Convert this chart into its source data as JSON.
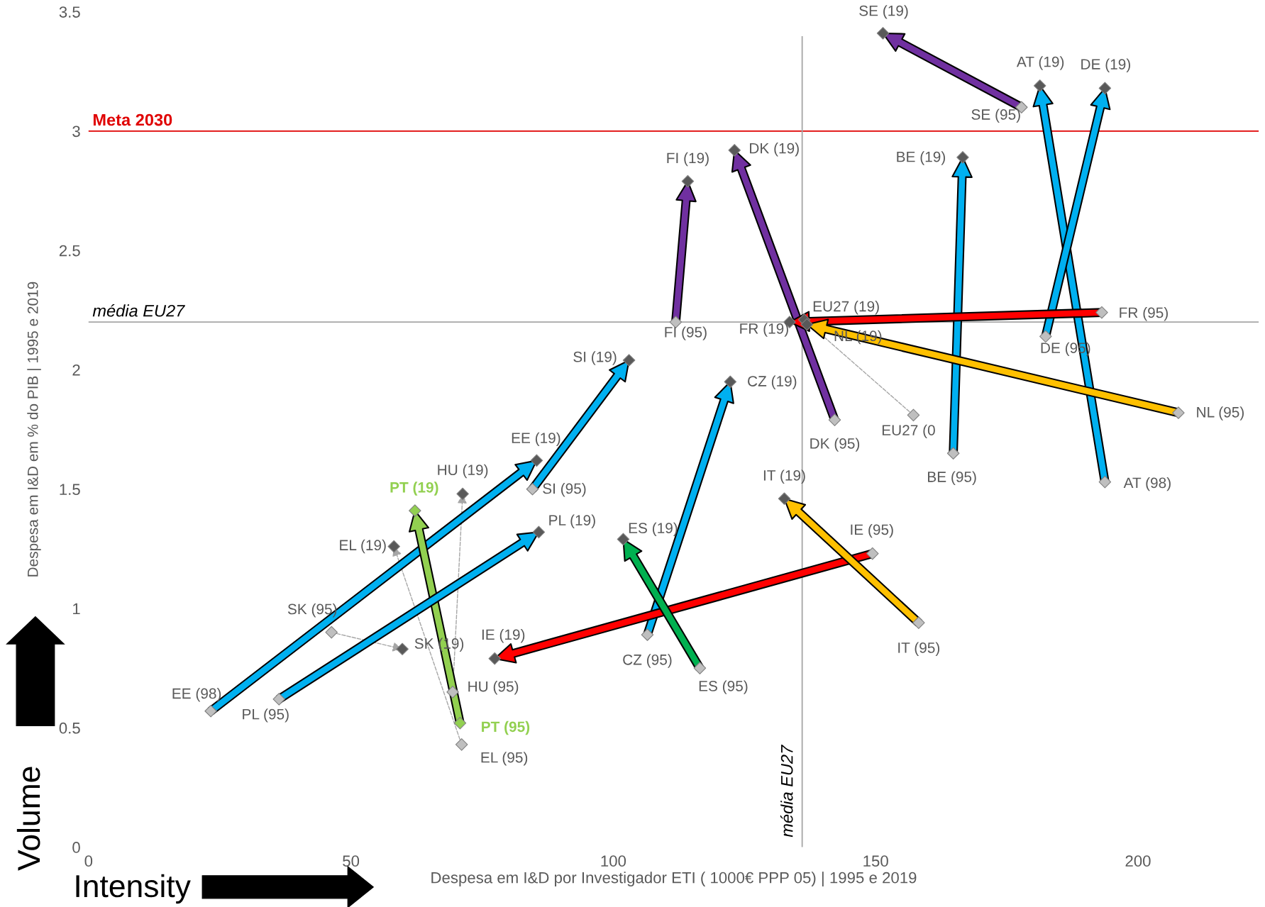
{
  "chart_data": {
    "type": "scatter",
    "xlabel": "Despesa em I&D por Investigador ETI ( 1000€ PPP 05) | 1995 e 2019",
    "ylabel": "Despesa em I&D em % do PIB | 1995 e 2019",
    "xlim": [
      0,
      223
    ],
    "ylim": [
      0,
      3.5
    ],
    "xticks": [
      0,
      50,
      100,
      150,
      200
    ],
    "yticks": [
      0,
      0.5,
      1,
      1.5,
      2,
      2.5,
      3,
      3.5
    ],
    "grid": false,
    "legend": false,
    "marker": "diamond",
    "line_style": "dashed",
    "ref_lines": [
      {
        "axis": "y",
        "value": 3,
        "label": "Meta 2030",
        "color": "#e00000",
        "line_style": "solid"
      },
      {
        "axis": "y",
        "value": 2.2,
        "label": "média EU27",
        "color": "#a6a6a6",
        "line_style": "solid"
      },
      {
        "axis": "x",
        "value": 136,
        "label": "média EU27",
        "color": "#a6a6a6",
        "line_style": "solid"
      }
    ],
    "series": [
      {
        "color": "#7030a0",
        "colors": [
          "#bfbfbf",
          "#595959"
        ],
        "x": [
          177.8,
          151.4
        ],
        "values": [
          3.1,
          3.41
        ]
      },
      {
        "color": "#00b0f0",
        "colors": [
          "#bfbfbf",
          "#595959"
        ],
        "x": [
          193.7,
          181.3
        ],
        "values": [
          1.53,
          3.19
        ]
      },
      {
        "color": "#00b0f0",
        "colors": [
          "#bfbfbf",
          "#595959"
        ],
        "x": [
          182.4,
          193.7
        ],
        "values": [
          2.14,
          3.18
        ]
      },
      {
        "color": "#00b0f0",
        "colors": [
          "#bfbfbf",
          "#595959"
        ],
        "x": [
          164.8,
          166.6
        ],
        "values": [
          1.65,
          2.89
        ]
      },
      {
        "color": "#7030a0",
        "colors": [
          "#bfbfbf",
          "#595959"
        ],
        "x": [
          111.9,
          114.2
        ],
        "values": [
          2.2,
          2.79
        ]
      },
      {
        "color": "#7030a0",
        "colors": [
          "#bfbfbf",
          "#595959"
        ],
        "x": [
          142.2,
          123.1
        ],
        "values": [
          1.79,
          2.92
        ]
      },
      {
        "color": "#ff0000",
        "colors": [
          "#bfbfbf",
          "#595959"
        ],
        "x": [
          193.1,
          133.6
        ],
        "values": [
          2.24,
          2.2
        ]
      },
      {
        "color": null,
        "colors": [
          "#bfbfbf",
          "#595959"
        ],
        "x": [
          157.2,
          136.4
        ],
        "values": [
          1.81,
          2.21
        ]
      },
      {
        "color": "#ffc000",
        "colors": [
          "#bfbfbf",
          "#595959"
        ],
        "x": [
          207.7,
          136.9
        ],
        "values": [
          1.82,
          2.19
        ]
      },
      {
        "color": "#00b0f0",
        "colors": [
          "#bfbfbf",
          "#595959"
        ],
        "x": [
          106.5,
          122.3
        ],
        "values": [
          0.89,
          1.95
        ]
      },
      {
        "color": "#00b0f0",
        "colors": [
          "#bfbfbf",
          "#595959"
        ],
        "x": [
          84.6,
          103.0
        ],
        "values": [
          1.5,
          2.04
        ]
      },
      {
        "color": "#00b0f0",
        "colors": [
          "#bfbfbf",
          "#595959"
        ],
        "x": [
          23.3,
          85.4
        ],
        "values": [
          0.57,
          1.62
        ]
      },
      {
        "color": null,
        "colors": [
          "#bfbfbf",
          "#595959"
        ],
        "x": [
          69.4,
          71.3
        ],
        "values": [
          0.65,
          1.48
        ]
      },
      {
        "color": "#92d050",
        "colors": [
          "#92d050",
          "#92d050"
        ],
        "x": [
          70.8,
          62.2
        ],
        "values": [
          0.52,
          1.41
        ]
      },
      {
        "color": null,
        "colors": [
          "#bfbfbf",
          "#595959"
        ],
        "x": [
          71.1,
          58.2
        ],
        "values": [
          0.43,
          1.26
        ]
      },
      {
        "color": "#00b0f0",
        "colors": [
          "#bfbfbf",
          "#595959"
        ],
        "x": [
          36.3,
          85.8
        ],
        "values": [
          0.62,
          1.32
        ]
      },
      {
        "color": null,
        "colors": [
          "#bfbfbf",
          "#595959"
        ],
        "x": [
          46.3,
          59.8
        ],
        "values": [
          0.9,
          0.83
        ]
      },
      {
        "color": "#ff0000",
        "colors": [
          "#bfbfbf",
          "#595959"
        ],
        "x": [
          149.4,
          77.4
        ],
        "values": [
          1.23,
          0.79
        ]
      },
      {
        "color": "#ffc000",
        "colors": [
          "#bfbfbf",
          "#595959"
        ],
        "x": [
          158.2,
          132.6
        ],
        "values": [
          0.94,
          1.46
        ]
      },
      {
        "color": "#00b050",
        "colors": [
          "#bfbfbf",
          "#595959"
        ],
        "x": [
          116.5,
          101.9
        ],
        "values": [
          0.75,
          1.29
        ]
      }
    ],
    "annotations": [
      {
        "text": "SE (95)",
        "x": 177.8,
        "y": 3.1
      },
      {
        "text": "SE (19)",
        "x": 151.4,
        "y": 3.41
      },
      {
        "text": "AT (98)",
        "x": 193.7,
        "y": 1.53
      },
      {
        "text": "AT (19)",
        "x": 181.3,
        "y": 3.19
      },
      {
        "text": "DE (95)",
        "x": 182.4,
        "y": 2.14
      },
      {
        "text": "DE (19)",
        "x": 193.7,
        "y": 3.18
      },
      {
        "text": "BE (95)",
        "x": 164.8,
        "y": 1.65
      },
      {
        "text": "BE (19)",
        "x": 166.6,
        "y": 2.89
      },
      {
        "text": "FI (95)",
        "x": 111.9,
        "y": 2.2
      },
      {
        "text": "FI (19)",
        "x": 114.2,
        "y": 2.79
      },
      {
        "text": "DK (95)",
        "x": 142.2,
        "y": 1.79
      },
      {
        "text": "DK (19)",
        "x": 123.1,
        "y": 2.92
      },
      {
        "text": "FR (95)",
        "x": 193.1,
        "y": 2.24
      },
      {
        "text": "FR (19)",
        "x": 133.6,
        "y": 2.2
      },
      {
        "text": "EU27 (0",
        "x": 157.2,
        "y": 1.81
      },
      {
        "text": "EU27 (19)",
        "x": 136.4,
        "y": 2.21
      },
      {
        "text": "NL (95)",
        "x": 207.7,
        "y": 1.82
      },
      {
        "text": "NL (19)",
        "x": 136.9,
        "y": 2.19
      },
      {
        "text": "CZ (95)",
        "x": 106.5,
        "y": 0.89
      },
      {
        "text": "CZ (19)",
        "x": 122.3,
        "y": 1.95
      },
      {
        "text": "SI (95)",
        "x": 84.6,
        "y": 1.5
      },
      {
        "text": "SI (19)",
        "x": 103.0,
        "y": 2.04
      },
      {
        "text": "EE (98)",
        "x": 23.3,
        "y": 0.57
      },
      {
        "text": "EE (19)",
        "x": 85.4,
        "y": 1.62
      },
      {
        "text": "HU (95)",
        "x": 69.4,
        "y": 0.65
      },
      {
        "text": "HU (19)",
        "x": 71.3,
        "y": 1.48
      },
      {
        "text": "PT (95)",
        "x": 70.8,
        "y": 0.52
      },
      {
        "text": "PT (19)",
        "x": 62.2,
        "y": 1.41
      },
      {
        "text": "EL (95)",
        "x": 71.1,
        "y": 0.43
      },
      {
        "text": "EL (19)",
        "x": 58.2,
        "y": 1.26
      },
      {
        "text": "PL (95)",
        "x": 36.3,
        "y": 0.62
      },
      {
        "text": "PL (19)",
        "x": 85.8,
        "y": 1.32
      },
      {
        "text": "SK (95)",
        "x": 46.3,
        "y": 0.9
      },
      {
        "text": "SK (19)",
        "x": 59.8,
        "y": 0.83
      },
      {
        "text": "IE (95)",
        "x": 149.4,
        "y": 1.23
      },
      {
        "text": "IE (19)",
        "x": 77.4,
        "y": 0.79
      },
      {
        "text": "IT (95)",
        "x": 158.2,
        "y": 0.94
      },
      {
        "text": "IT (19)",
        "x": 132.6,
        "y": 1.46
      },
      {
        "text": "ES (95)",
        "x": 116.5,
        "y": 0.75
      },
      {
        "text": "ES (19)",
        "x": 101.9,
        "y": 1.29
      },
      "Volume",
      "Intensity"
    ]
  }
}
